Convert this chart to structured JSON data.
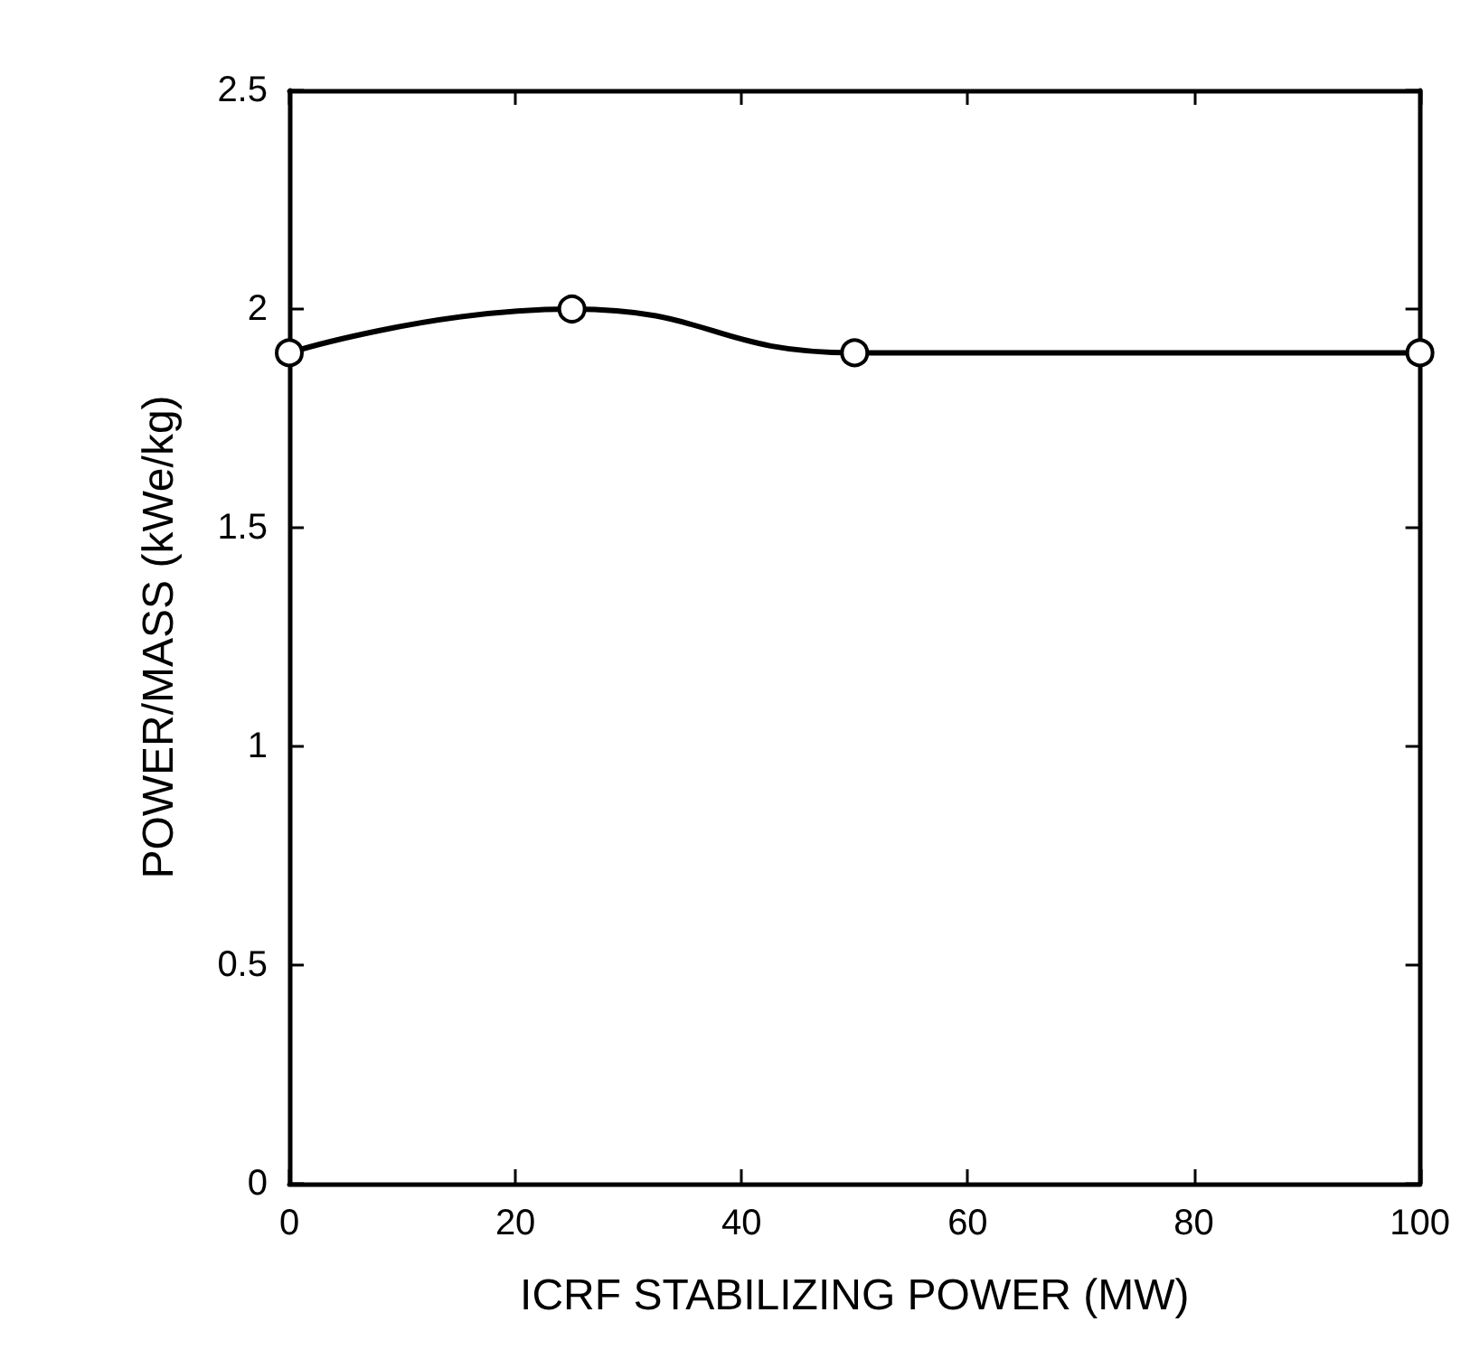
{
  "chart_data": {
    "type": "line",
    "xlabel": "ICRF STABILIZING POWER (MW)",
    "ylabel": "POWER/MASS (kWe/kg)",
    "x": [
      0,
      25,
      50,
      100
    ],
    "series": [
      {
        "color": "#000000",
        "values": [
          1.9,
          2.0,
          1.9,
          1.9
        ]
      }
    ],
    "xlim": [
      0,
      100
    ],
    "xticks": [
      0,
      20,
      40,
      60,
      80,
      100
    ],
    "ylim": [
      0,
      2.5
    ],
    "yticks": [
      0,
      0.5,
      1,
      1.5,
      2,
      2.5
    ],
    "grid": false,
    "marker": "circle",
    "line_style": "solid"
  }
}
